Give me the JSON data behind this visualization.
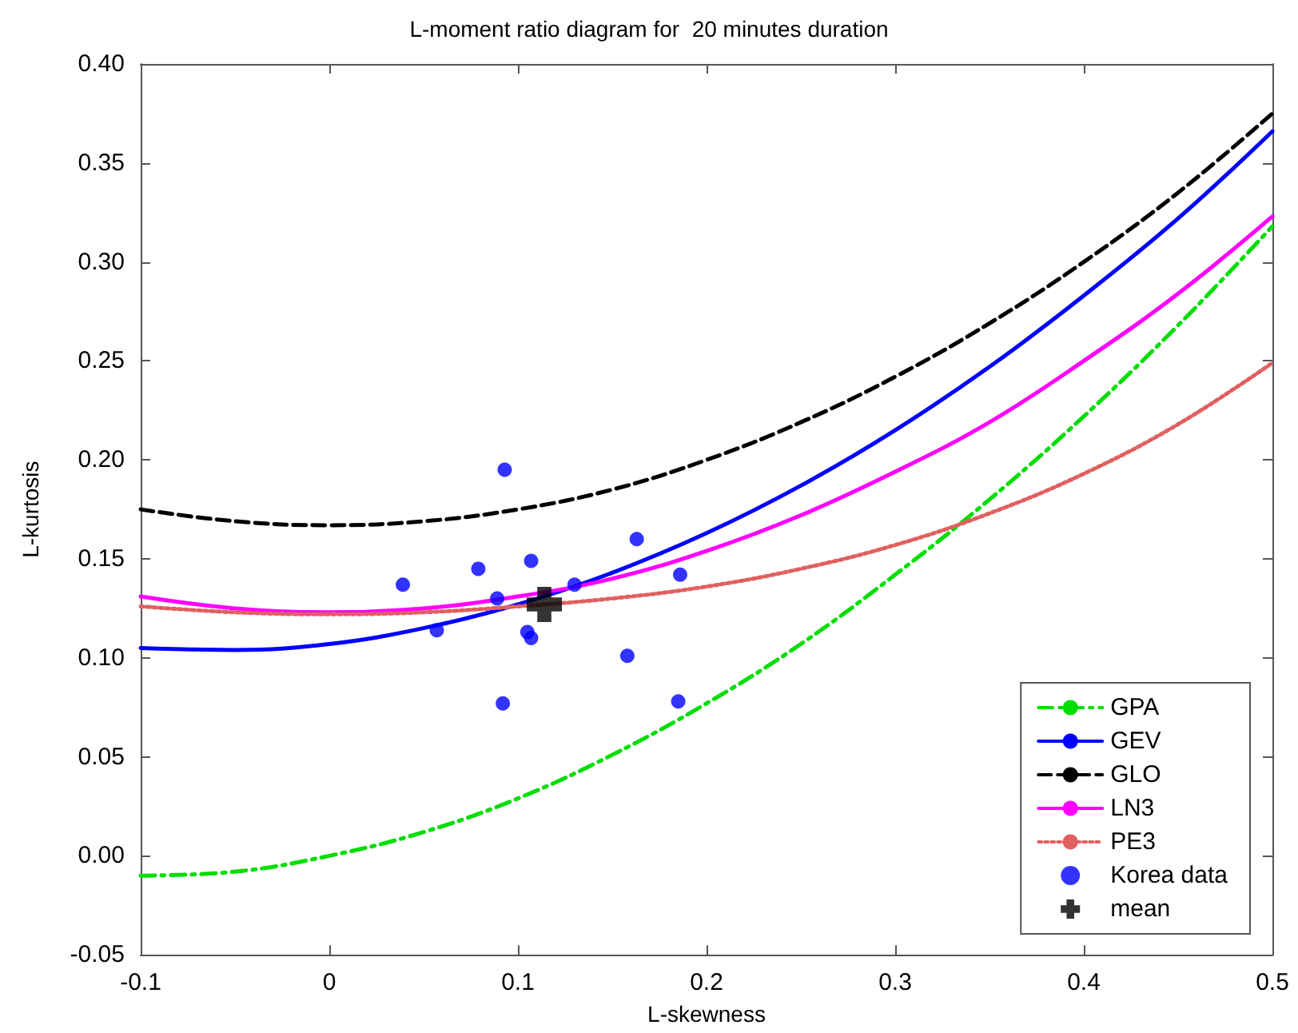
{
  "chart_data": {
    "type": "line",
    "title": "L-moment ratio diagram for  20 minutes duration",
    "xlabel": "L-skewness",
    "ylabel": "L-kurtosis",
    "x": [
      -0.1,
      -0.05,
      0,
      0.05,
      0.1,
      0.15,
      0.2,
      0.25,
      0.3,
      0.35,
      0.4,
      0.45,
      0.5
    ],
    "series": [
      {
        "name": "GPA",
        "color": "#00dd00",
        "line_style": "dashdot",
        "marker": "none",
        "values": [
          -0.01,
          -0.008,
          0,
          0.012,
          0.029,
          0.051,
          0.077,
          0.107,
          0.142,
          0.18,
          0.222,
          0.268,
          0.318
        ]
      },
      {
        "name": "GEV",
        "color": "#0000ff",
        "line_style": "solid",
        "marker": "none",
        "values": [
          0.105,
          0.104,
          0.107,
          0.115,
          0.127,
          0.143,
          0.163,
          0.187,
          0.215,
          0.247,
          0.283,
          0.322,
          0.366
        ]
      },
      {
        "name": "GLO",
        "color": "#000000",
        "line_style": "dashed",
        "marker": "none",
        "values": [
          0.175,
          0.169,
          0.167,
          0.169,
          0.175,
          0.185,
          0.2,
          0.219,
          0.242,
          0.269,
          0.3,
          0.335,
          0.375
        ]
      },
      {
        "name": "LN3",
        "color": "#ff00ff",
        "line_style": "solid",
        "marker": "none",
        "values": [
          0.131,
          0.125,
          0.123,
          0.125,
          0.131,
          0.14,
          0.154,
          0.172,
          0.194,
          0.219,
          0.25,
          0.284,
          0.323
        ]
      },
      {
        "name": "PE3",
        "color": "#e06060",
        "line_style": "dotted",
        "marker": "none",
        "values": [
          0.126,
          0.123,
          0.122,
          0.123,
          0.126,
          0.13,
          0.136,
          0.145,
          0.157,
          0.173,
          0.193,
          0.218,
          0.249
        ]
      },
      {
        "name": "Korea data",
        "type": "scatter",
        "color": "#0000ff",
        "marker": "circle",
        "x": [
          0.093,
          0.039,
          0.057,
          0.079,
          0.089,
          0.107,
          0.105,
          0.107,
          0.13,
          0.163,
          0.186,
          0.158,
          0.092,
          0.185
        ],
        "values": [
          0.195,
          0.137,
          0.114,
          0.145,
          0.13,
          0.149,
          0.113,
          0.11,
          0.137,
          0.16,
          0.142,
          0.101,
          0.077,
          0.078
        ]
      },
      {
        "name": "mean",
        "type": "scatter",
        "color": "#000000",
        "marker": "cross",
        "x": [
          0.114
        ],
        "values": [
          0.127
        ]
      }
    ],
    "xlim": [
      -0.1,
      0.5
    ],
    "xticks": [
      -0.1,
      0,
      0.1,
      0.2,
      0.3,
      0.4,
      0.5
    ],
    "ylim": [
      -0.05,
      0.4
    ],
    "yticks": [
      {
        "value": -0.05,
        "label": "-0.05"
      },
      {
        "value": 0,
        "label": "0.00"
      },
      {
        "value": 0.05,
        "label": "0.05"
      },
      {
        "value": 0.1,
        "label": "0.10"
      },
      {
        "value": 0.15,
        "label": "0.15"
      },
      {
        "value": 0.2,
        "label": "0.20"
      },
      {
        "value": 0.25,
        "label": "0.25"
      },
      {
        "value": 0.3,
        "label": "0.30"
      },
      {
        "value": 0.35,
        "label": "0.35"
      },
      {
        "value": 0.4,
        "label": "0.40"
      }
    ],
    "grid": false,
    "legend": "bottom right"
  }
}
